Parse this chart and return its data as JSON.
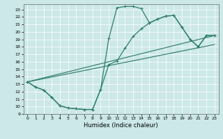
{
  "xlabel": "Humidex (Indice chaleur)",
  "bg_color": "#cce8e8",
  "line_color": "#2e7d6e",
  "xlim": [
    -0.5,
    23.5
  ],
  "ylim": [
    9,
    23.7
  ],
  "yticks": [
    9,
    10,
    11,
    12,
    13,
    14,
    15,
    16,
    17,
    18,
    19,
    20,
    21,
    22,
    23
  ],
  "xticks": [
    0,
    1,
    2,
    3,
    4,
    5,
    6,
    7,
    8,
    9,
    10,
    11,
    12,
    13,
    14,
    15,
    16,
    17,
    18,
    19,
    20,
    21,
    22,
    23
  ],
  "line1_x": [
    0,
    1,
    2,
    3,
    4,
    5,
    6,
    7,
    8,
    9,
    10,
    11,
    12,
    13,
    14,
    15,
    16,
    17,
    18,
    19,
    20,
    21,
    22,
    23
  ],
  "line1_y": [
    13.3,
    12.6,
    12.2,
    11.2,
    10.1,
    9.8,
    9.7,
    9.6,
    9.6,
    12.3,
    19.1,
    23.2,
    23.4,
    23.4,
    23.1,
    21.2,
    21.7,
    22.1,
    22.2,
    20.6,
    19.0,
    18.0,
    19.5,
    19.5
  ],
  "line2_x": [
    0,
    1,
    2,
    3,
    4,
    5,
    6,
    7,
    8,
    9,
    10,
    11,
    12,
    13,
    14,
    15,
    16,
    17,
    18,
    19,
    20,
    21,
    22,
    23
  ],
  "line2_y": [
    13.3,
    12.6,
    12.2,
    11.2,
    10.1,
    9.8,
    9.7,
    9.6,
    9.6,
    12.3,
    15.6,
    16.1,
    17.8,
    19.4,
    20.4,
    21.2,
    21.7,
    22.1,
    22.2,
    20.6,
    19.0,
    18.0,
    19.5,
    19.5
  ],
  "trend1_x": [
    0,
    23
  ],
  "trend1_y": [
    13.3,
    19.5
  ],
  "trend2_x": [
    0,
    23
  ],
  "trend2_y": [
    13.3,
    18.3
  ]
}
